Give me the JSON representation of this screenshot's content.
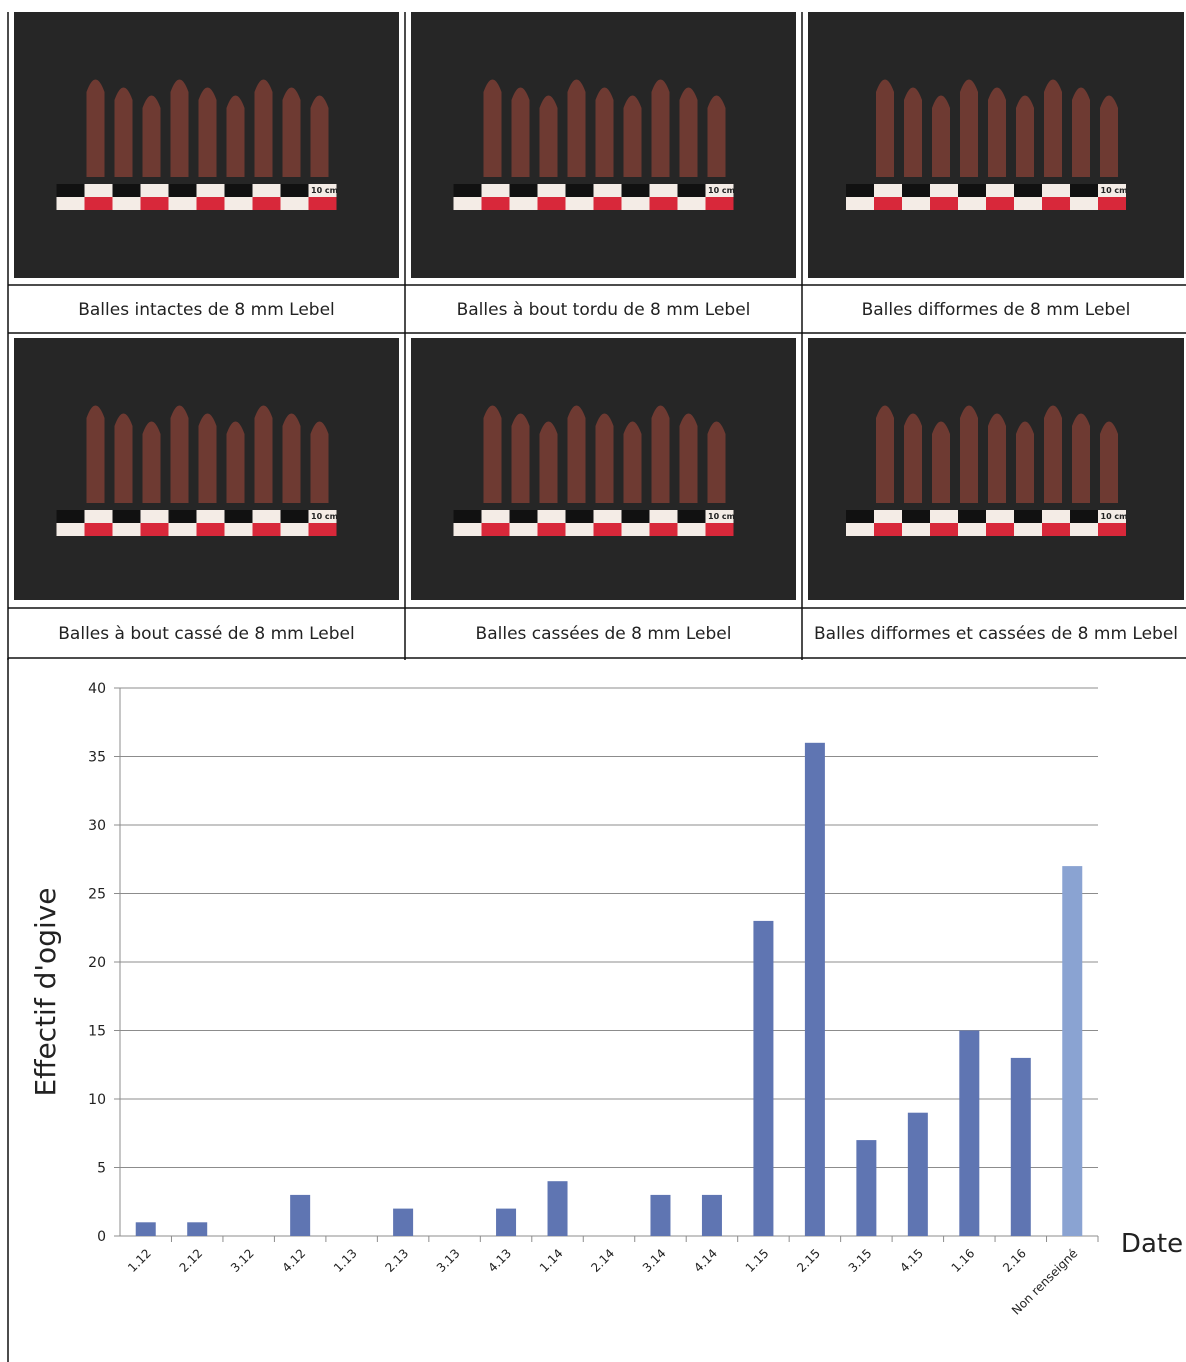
{
  "panels": [
    {
      "caption": "Balles intactes de 8 mm Lebel",
      "scale": "10 cm"
    },
    {
      "caption": "Balles à bout tordu de 8 mm Lebel",
      "scale": "10 cm"
    },
    {
      "caption": "Balles difformes de 8 mm Lebel",
      "scale": "10 cm"
    },
    {
      "caption": "Balles  à bout cassé de 8 mm Lebel",
      "scale": "10 cm"
    },
    {
      "caption": "Balles cassées de 8 mm Lebel",
      "scale": "10 cm"
    },
    {
      "caption": "Balles difformes et cassées de 8 mm Lebel",
      "scale": "10 cm"
    }
  ],
  "chart_data": {
    "type": "bar",
    "y_label": "Effectif d'ogive",
    "x_label": "Date",
    "categories": [
      "1.12",
      "2.12",
      "3.12",
      "4.12",
      "1.13",
      "2.13",
      "3.13",
      "4.13",
      "1.14",
      "2.14",
      "3.14",
      "4.14",
      "1.15",
      "2.15",
      "3.15",
      "4.15",
      "1.16",
      "2.16",
      "Non renseigné"
    ],
    "values": [
      1,
      1,
      0,
      3,
      0,
      2,
      0,
      2,
      4,
      0,
      3,
      3,
      23,
      36,
      7,
      9,
      15,
      13,
      27
    ],
    "colors": [
      "#5f75b2",
      "#5f75b2",
      "#5f75b2",
      "#5f75b2",
      "#5f75b2",
      "#5f75b2",
      "#5f75b2",
      "#5f75b2",
      "#5f75b2",
      "#5f75b2",
      "#5f75b2",
      "#5f75b2",
      "#5f75b2",
      "#5f75b2",
      "#5f75b2",
      "#5f75b2",
      "#5f75b2",
      "#5f75b2",
      "#8aa3d2"
    ],
    "ylim": [
      0,
      40
    ],
    "yticks": [
      0,
      5,
      10,
      15,
      20,
      25,
      30,
      35,
      40
    ],
    "grid": true
  }
}
